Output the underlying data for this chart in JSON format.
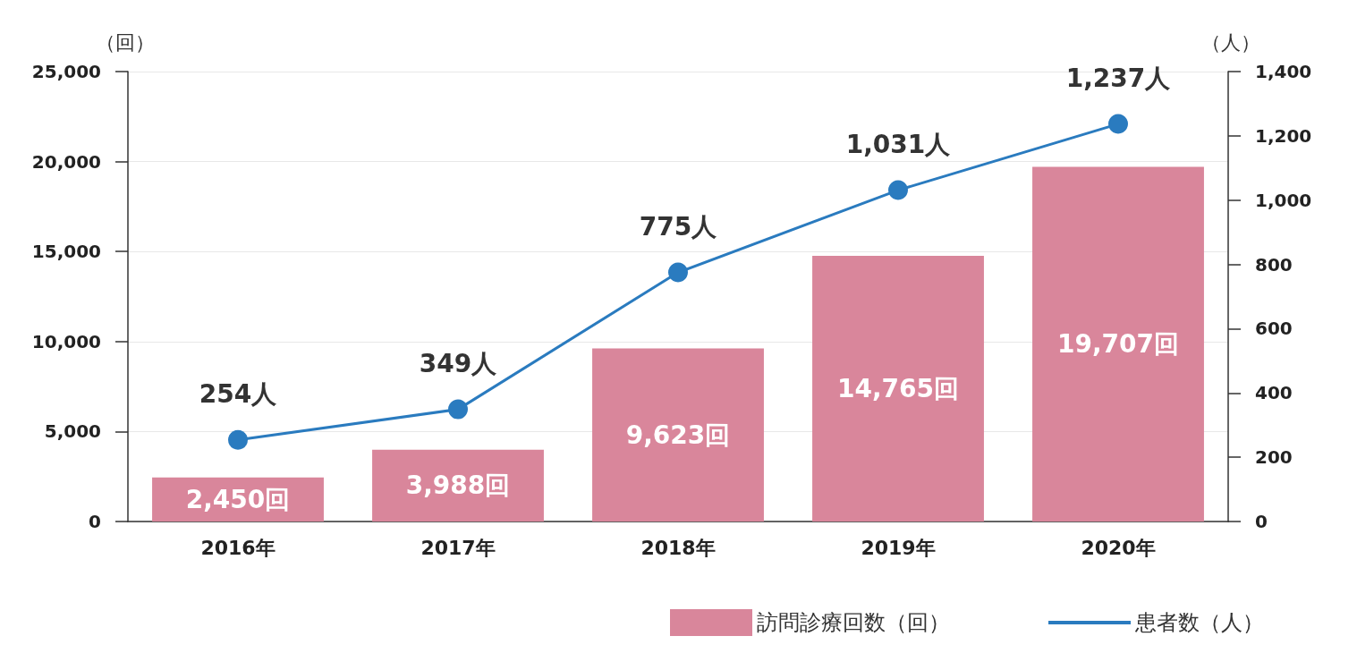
{
  "chart_data": {
    "type": "bar",
    "ylabel": "（回）",
    "y2label": "（人）",
    "categories": [
      "2016年",
      "2017年",
      "2018年",
      "2019年",
      "2020年"
    ],
    "series": [
      {
        "name": "訪問診療回数（回）",
        "color": "#d9869b",
        "values": [
          2450,
          3988,
          9623,
          14765,
          19707
        ],
        "value_labels": [
          "2,450回",
          "3,988回",
          "9,623回",
          "14,765回",
          "19,707回"
        ]
      },
      {
        "name": "患者数（人）",
        "type": "line",
        "axis": "y2",
        "color": "#2a7bbf",
        "marker": "circle",
        "values": [
          254,
          349,
          775,
          1031,
          1237
        ],
        "value_labels": [
          "254人",
          "349人",
          "775人",
          "1,031人",
          "1,237人"
        ]
      }
    ],
    "ylim": [
      0,
      25000
    ],
    "yticks": [
      0,
      {
        "value": 5000,
        "label": "5,000"
      },
      {
        "value": 10000,
        "label": "10,000"
      },
      {
        "value": 15000,
        "label": "15,000"
      },
      {
        "value": 20000,
        "label": "20,000"
      },
      {
        "value": 25000,
        "label": "25,000"
      }
    ],
    "y2lim": [
      0,
      1400
    ],
    "y2ticks": [
      0,
      200,
      400,
      600,
      800,
      {
        "value": 1000,
        "label": "1,000"
      },
      {
        "value": 1200,
        "label": "1,200"
      },
      {
        "value": 1400,
        "label": "1,400"
      }
    ],
    "grid": "y",
    "legend": "bottom right"
  }
}
